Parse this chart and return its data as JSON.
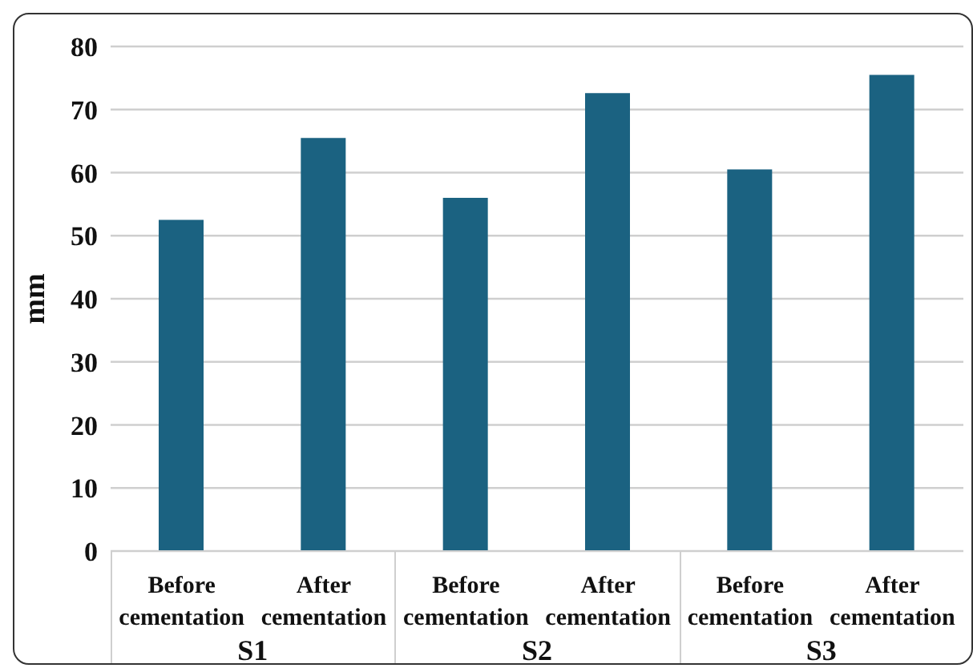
{
  "chart_data": {
    "type": "bar",
    "ylabel": "mm",
    "categories": [
      "Before cementation",
      "After cementation",
      "Before cementation",
      "After cementation",
      "Before cementation",
      "After cementation"
    ],
    "values": [
      52.5,
      65.5,
      56.0,
      72.6,
      60.5,
      75.5
    ],
    "color": "#1b6281",
    "ylim": [
      0,
      80
    ],
    "yticks": [
      0,
      10,
      20,
      30,
      40,
      50,
      60,
      70,
      80
    ],
    "grid": "y",
    "annotations": [
      "S1",
      "S2",
      "S3"
    ]
  }
}
